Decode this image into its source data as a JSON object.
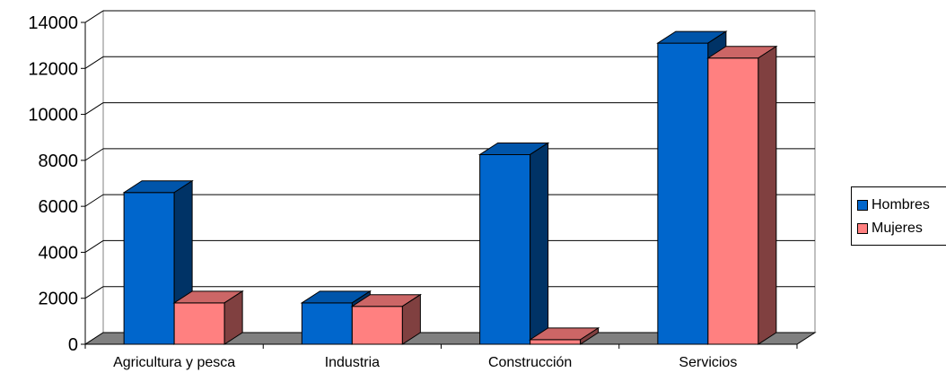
{
  "chart_data": {
    "type": "bar",
    "categories": [
      "Agricultura y pesca",
      "Industria",
      "Construcción",
      "Servicios"
    ],
    "series": [
      {
        "name": "Hombres",
        "values": [
          6600,
          1800,
          8250,
          13100
        ],
        "color": "#0066CC",
        "top_color": "#0055AA",
        "side_color": "#003366"
      },
      {
        "name": "Mujeres",
        "values": [
          1800,
          1650,
          200,
          12450
        ],
        "color": "#FF8080",
        "top_color": "#CC6666",
        "side_color": "#804040"
      }
    ],
    "ylim": [
      0,
      14000
    ],
    "yticks": [
      "0",
      "2000",
      "4000",
      "6000",
      "8000",
      "10000",
      "12000",
      "14000"
    ],
    "grid": true,
    "legend": "right",
    "title": "",
    "xlabel": "",
    "ylabel": ""
  }
}
